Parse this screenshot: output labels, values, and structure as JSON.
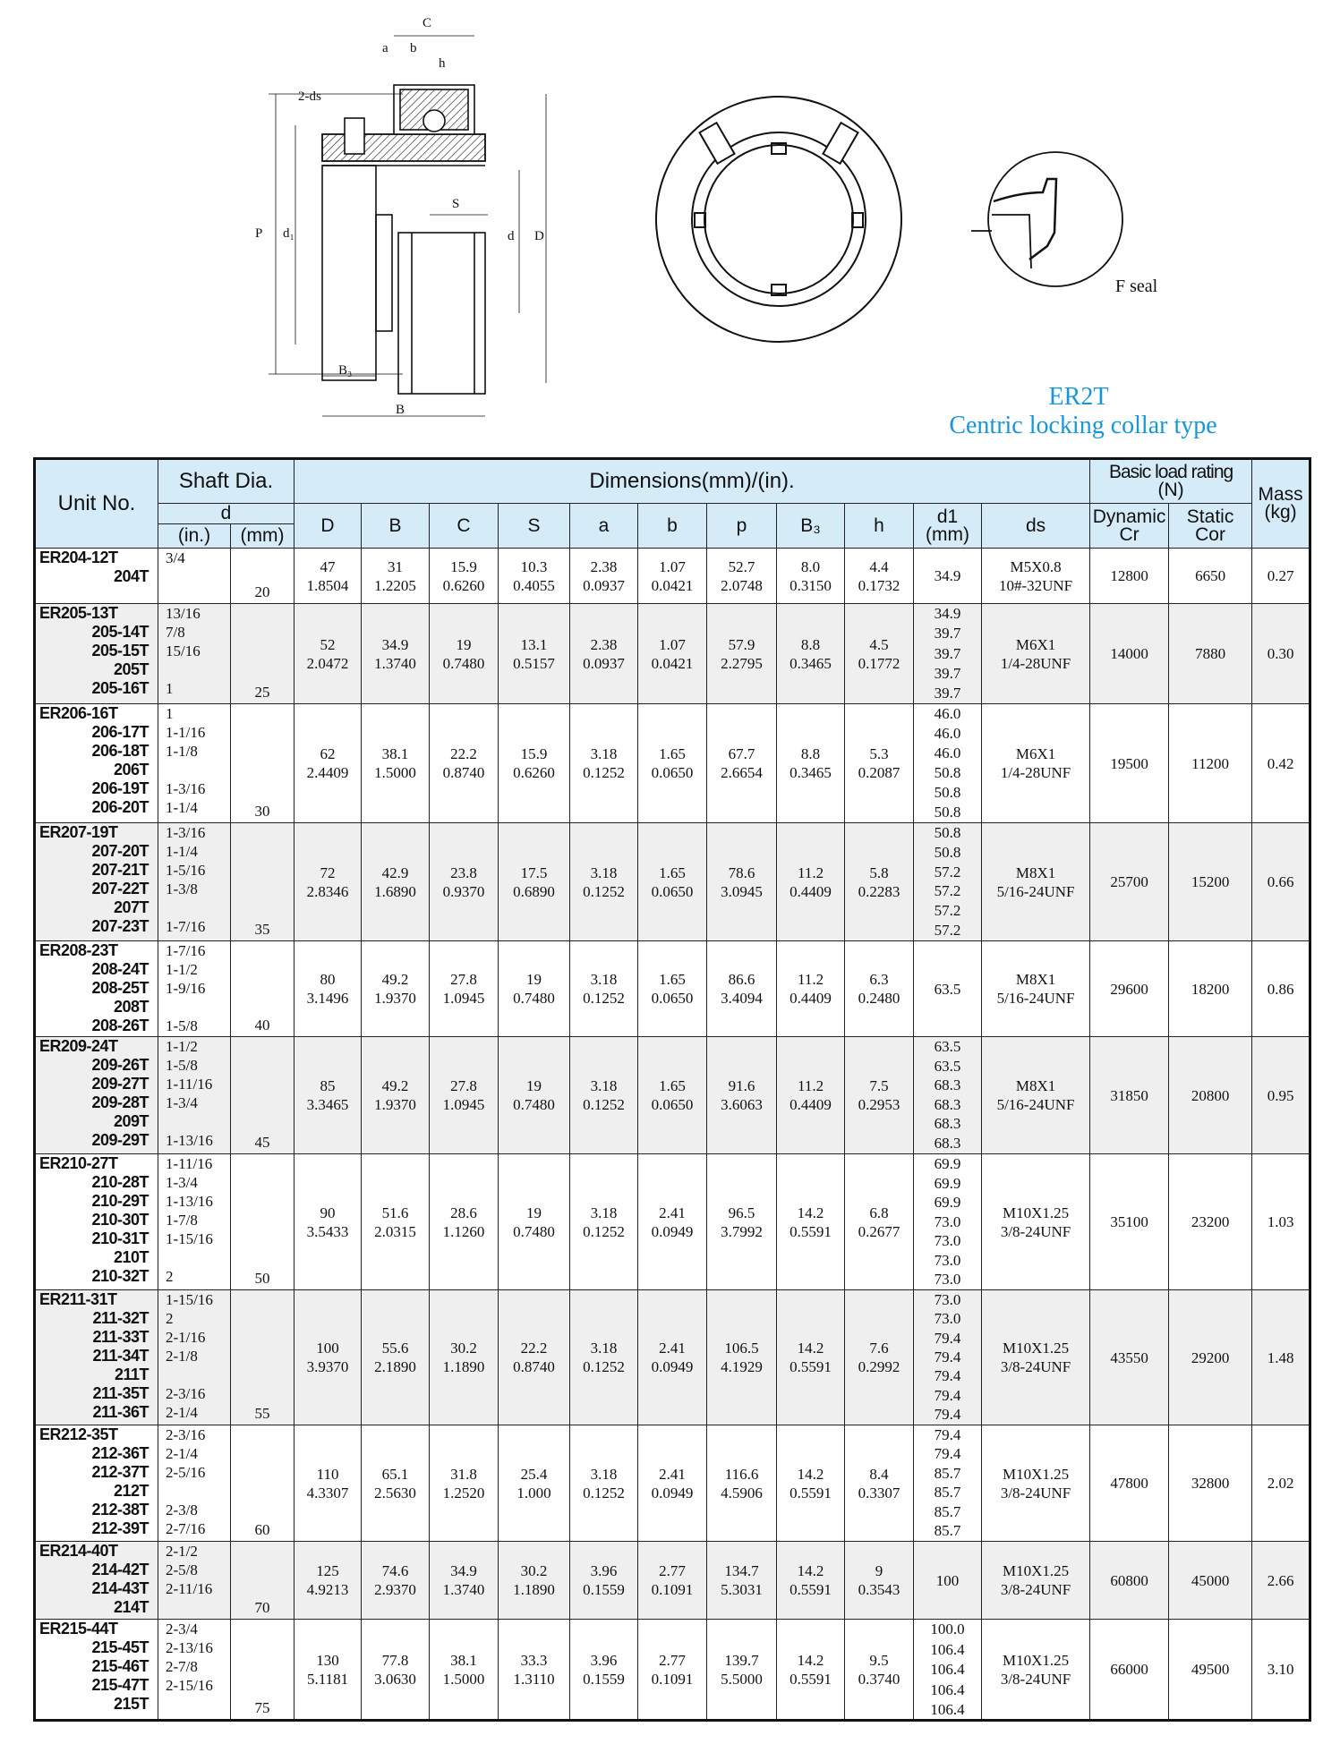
{
  "drawing": {
    "labels": {
      "C": "C",
      "a": "a",
      "b": "b",
      "h": "h",
      "ds": "2-ds",
      "P": "P",
      "d1": "d₁",
      "S": "S",
      "d": "d",
      "D": "D",
      "B3": "B₃",
      "B": "B"
    },
    "seal_label": "F seal"
  },
  "title": {
    "code": "ER2T",
    "subtitle": "Centric locking collar type",
    "color": "#1796d8"
  },
  "table": {
    "header": {
      "unit_no": "Unit No.",
      "shaft_dia": "Shaft Dia.",
      "d": "d",
      "in": "(in.)",
      "mm": "(mm)",
      "dimensions": "Dimensions(mm)/(in).",
      "cols": [
        "D",
        "B",
        "C",
        "S",
        "a",
        "b",
        "p",
        "B₃",
        "h"
      ],
      "d1": "d1",
      "d1_unit": "(mm)",
      "ds": "ds",
      "load_rating": "Basic load rating",
      "load_unit": "(N)",
      "dynamic": "Dynamic",
      "cr": "Cr",
      "static": "Static",
      "cor": "Cor",
      "mass": "Mass",
      "mass_unit": "(kg)"
    },
    "rows": [
      {
        "units": [
          "ER204-12T",
          "204T"
        ],
        "inch": [
          "3/4",
          ""
        ],
        "mm": "20",
        "dims": [
          [
            "47",
            "1.8504"
          ],
          [
            "31",
            "1.2205"
          ],
          [
            "15.9",
            "0.6260"
          ],
          [
            "10.3",
            "0.4055"
          ],
          [
            "2.38",
            "0.0937"
          ],
          [
            "1.07",
            "0.0421"
          ],
          [
            "52.7",
            "2.0748"
          ],
          [
            "8.0",
            "0.3150"
          ],
          [
            "4.4",
            "0.1732"
          ]
        ],
        "d1": [
          "34.9"
        ],
        "ds": [
          "M5X0.8",
          "10#-32UNF"
        ],
        "cr": "12800",
        "cor": "6650",
        "mass": "0.27"
      },
      {
        "units": [
          "ER205-13T",
          "205-14T",
          "205-15T",
          "205T",
          "205-16T"
        ],
        "inch": [
          "13/16",
          "7/8",
          "15/16",
          "",
          "1"
        ],
        "mm": "25",
        "dims": [
          [
            "52",
            "2.0472"
          ],
          [
            "34.9",
            "1.3740"
          ],
          [
            "19",
            "0.7480"
          ],
          [
            "13.1",
            "0.5157"
          ],
          [
            "2.38",
            "0.0937"
          ],
          [
            "1.07",
            "0.0421"
          ],
          [
            "57.9",
            "2.2795"
          ],
          [
            "8.8",
            "0.3465"
          ],
          [
            "4.5",
            "0.1772"
          ]
        ],
        "d1": [
          "34.9",
          "39.7",
          "39.7",
          "39.7",
          "39.7"
        ],
        "ds": [
          "M6X1",
          "1/4-28UNF"
        ],
        "cr": "14000",
        "cor": "7880",
        "mass": "0.30"
      },
      {
        "units": [
          "ER206-16T",
          "206-17T",
          "206-18T",
          "206T",
          "206-19T",
          "206-20T"
        ],
        "inch": [
          "1",
          "1-1/16",
          "1-1/8",
          "",
          "1-3/16",
          "1-1/4"
        ],
        "mm": "30",
        "dims": [
          [
            "62",
            "2.4409"
          ],
          [
            "38.1",
            "1.5000"
          ],
          [
            "22.2",
            "0.8740"
          ],
          [
            "15.9",
            "0.6260"
          ],
          [
            "3.18",
            "0.1252"
          ],
          [
            "1.65",
            "0.0650"
          ],
          [
            "67.7",
            "2.6654"
          ],
          [
            "8.8",
            "0.3465"
          ],
          [
            "5.3",
            "0.2087"
          ]
        ],
        "d1": [
          "46.0",
          "46.0",
          "46.0",
          "50.8",
          "50.8",
          "50.8"
        ],
        "ds": [
          "M6X1",
          "1/4-28UNF"
        ],
        "cr": "19500",
        "cor": "11200",
        "mass": "0.42"
      },
      {
        "units": [
          "ER207-19T",
          "207-20T",
          "207-21T",
          "207-22T",
          "207T",
          "207-23T"
        ],
        "inch": [
          "1-3/16",
          "1-1/4",
          "1-5/16",
          "1-3/8",
          "",
          "1-7/16"
        ],
        "mm": "35",
        "dims": [
          [
            "72",
            "2.8346"
          ],
          [
            "42.9",
            "1.6890"
          ],
          [
            "23.8",
            "0.9370"
          ],
          [
            "17.5",
            "0.6890"
          ],
          [
            "3.18",
            "0.1252"
          ],
          [
            "1.65",
            "0.0650"
          ],
          [
            "78.6",
            "3.0945"
          ],
          [
            "11.2",
            "0.4409"
          ],
          [
            "5.8",
            "0.2283"
          ]
        ],
        "d1": [
          "50.8",
          "50.8",
          "57.2",
          "57.2",
          "57.2",
          "57.2"
        ],
        "ds": [
          "M8X1",
          "5/16-24UNF"
        ],
        "cr": "25700",
        "cor": "15200",
        "mass": "0.66"
      },
      {
        "units": [
          "ER208-23T",
          "208-24T",
          "208-25T",
          "208T",
          "208-26T"
        ],
        "inch": [
          "1-7/16",
          "1-1/2",
          "1-9/16",
          "",
          "1-5/8"
        ],
        "mm": "40",
        "dims": [
          [
            "80",
            "3.1496"
          ],
          [
            "49.2",
            "1.9370"
          ],
          [
            "27.8",
            "1.0945"
          ],
          [
            "19",
            "0.7480"
          ],
          [
            "3.18",
            "0.1252"
          ],
          [
            "1.65",
            "0.0650"
          ],
          [
            "86.6",
            "3.4094"
          ],
          [
            "11.2",
            "0.4409"
          ],
          [
            "6.3",
            "0.2480"
          ]
        ],
        "d1": [
          "63.5"
        ],
        "ds": [
          "M8X1",
          "5/16-24UNF"
        ],
        "cr": "29600",
        "cor": "18200",
        "mass": "0.86"
      },
      {
        "units": [
          "ER209-24T",
          "209-26T",
          "209-27T",
          "209-28T",
          "209T",
          "209-29T"
        ],
        "inch": [
          "1-1/2",
          "1-5/8",
          "1-11/16",
          "1-3/4",
          "",
          "1-13/16"
        ],
        "mm": "45",
        "dims": [
          [
            "85",
            "3.3465"
          ],
          [
            "49.2",
            "1.9370"
          ],
          [
            "27.8",
            "1.0945"
          ],
          [
            "19",
            "0.7480"
          ],
          [
            "3.18",
            "0.1252"
          ],
          [
            "1.65",
            "0.0650"
          ],
          [
            "91.6",
            "3.6063"
          ],
          [
            "11.2",
            "0.4409"
          ],
          [
            "7.5",
            "0.2953"
          ]
        ],
        "d1": [
          "63.5",
          "63.5",
          "68.3",
          "68.3",
          "68.3",
          "68.3"
        ],
        "ds": [
          "M8X1",
          "5/16-24UNF"
        ],
        "cr": "31850",
        "cor": "20800",
        "mass": "0.95"
      },
      {
        "units": [
          "ER210-27T",
          "210-28T",
          "210-29T",
          "210-30T",
          "210-31T",
          "210T",
          "210-32T"
        ],
        "inch": [
          "1-11/16",
          "1-3/4",
          "1-13/16",
          "1-7/8",
          "1-15/16",
          "",
          "2"
        ],
        "mm": "50",
        "dims": [
          [
            "90",
            "3.5433"
          ],
          [
            "51.6",
            "2.0315"
          ],
          [
            "28.6",
            "1.1260"
          ],
          [
            "19",
            "0.7480"
          ],
          [
            "3.18",
            "0.1252"
          ],
          [
            "2.41",
            "0.0949"
          ],
          [
            "96.5",
            "3.7992"
          ],
          [
            "14.2",
            "0.5591"
          ],
          [
            "6.8",
            "0.2677"
          ]
        ],
        "d1": [
          "69.9",
          "69.9",
          "69.9",
          "73.0",
          "73.0",
          "73.0",
          "73.0"
        ],
        "ds": [
          "M10X1.25",
          "3/8-24UNF"
        ],
        "cr": "35100",
        "cor": "23200",
        "mass": "1.03"
      },
      {
        "units": [
          "ER211-31T",
          "211-32T",
          "211-33T",
          "211-34T",
          "211T",
          "211-35T",
          "211-36T"
        ],
        "inch": [
          "1-15/16",
          "2",
          "2-1/16",
          "2-1/8",
          "",
          "2-3/16",
          "2-1/4"
        ],
        "mm": "55",
        "dims": [
          [
            "100",
            "3.9370"
          ],
          [
            "55.6",
            "2.1890"
          ],
          [
            "30.2",
            "1.1890"
          ],
          [
            "22.2",
            "0.8740"
          ],
          [
            "3.18",
            "0.1252"
          ],
          [
            "2.41",
            "0.0949"
          ],
          [
            "106.5",
            "4.1929"
          ],
          [
            "14.2",
            "0.5591"
          ],
          [
            "7.6",
            "0.2992"
          ]
        ],
        "d1": [
          "73.0",
          "73.0",
          "79.4",
          "79.4",
          "79.4",
          "79.4",
          "79.4"
        ],
        "ds": [
          "M10X1.25",
          "3/8-24UNF"
        ],
        "cr": "43550",
        "cor": "29200",
        "mass": "1.48"
      },
      {
        "units": [
          "ER212-35T",
          "212-36T",
          "212-37T",
          "212T",
          "212-38T",
          "212-39T"
        ],
        "inch": [
          "2-3/16",
          "2-1/4",
          "2-5/16",
          "",
          "2-3/8",
          "2-7/16"
        ],
        "mm": "60",
        "dims": [
          [
            "110",
            "4.3307"
          ],
          [
            "65.1",
            "2.5630"
          ],
          [
            "31.8",
            "1.2520"
          ],
          [
            "25.4",
            "1.000"
          ],
          [
            "3.18",
            "0.1252"
          ],
          [
            "2.41",
            "0.0949"
          ],
          [
            "116.6",
            "4.5906"
          ],
          [
            "14.2",
            "0.5591"
          ],
          [
            "8.4",
            "0.3307"
          ]
        ],
        "d1": [
          "79.4",
          "79.4",
          "85.7",
          "85.7",
          "85.7",
          "85.7"
        ],
        "ds": [
          "M10X1.25",
          "3/8-24UNF"
        ],
        "cr": "47800",
        "cor": "32800",
        "mass": "2.02"
      },
      {
        "units": [
          "ER214-40T",
          "214-42T",
          "214-43T",
          "214T"
        ],
        "inch": [
          "2-1/2",
          "2-5/8",
          "2-11/16",
          ""
        ],
        "mm": "70",
        "dims": [
          [
            "125",
            "4.9213"
          ],
          [
            "74.6",
            "2.9370"
          ],
          [
            "34.9",
            "1.3740"
          ],
          [
            "30.2",
            "1.1890"
          ],
          [
            "3.96",
            "0.1559"
          ],
          [
            "2.77",
            "0.1091"
          ],
          [
            "134.7",
            "5.3031"
          ],
          [
            "14.2",
            "0.5591"
          ],
          [
            "9",
            "0.3543"
          ]
        ],
        "d1": [
          "100"
        ],
        "ds": [
          "M10X1.25",
          "3/8-24UNF"
        ],
        "cr": "60800",
        "cor": "45000",
        "mass": "2.66"
      },
      {
        "units": [
          "ER215-44T",
          "215-45T",
          "215-46T",
          "215-47T",
          "215T"
        ],
        "inch": [
          "2-3/4",
          "2-13/16",
          "2-7/8",
          "2-15/16",
          ""
        ],
        "mm": "75",
        "dims": [
          [
            "130",
            "5.1181"
          ],
          [
            "77.8",
            "3.0630"
          ],
          [
            "38.1",
            "1.5000"
          ],
          [
            "33.3",
            "1.3110"
          ],
          [
            "3.96",
            "0.1559"
          ],
          [
            "2.77",
            "0.1091"
          ],
          [
            "139.7",
            "5.5000"
          ],
          [
            "14.2",
            "0.5591"
          ],
          [
            "9.5",
            "0.3740"
          ]
        ],
        "d1": [
          "100.0",
          "106.4",
          "106.4",
          "106.4",
          "106.4"
        ],
        "ds": [
          "M10X1.25",
          "3/8-24UNF"
        ],
        "cr": "66000",
        "cor": "49500",
        "mass": "3.10"
      }
    ]
  }
}
